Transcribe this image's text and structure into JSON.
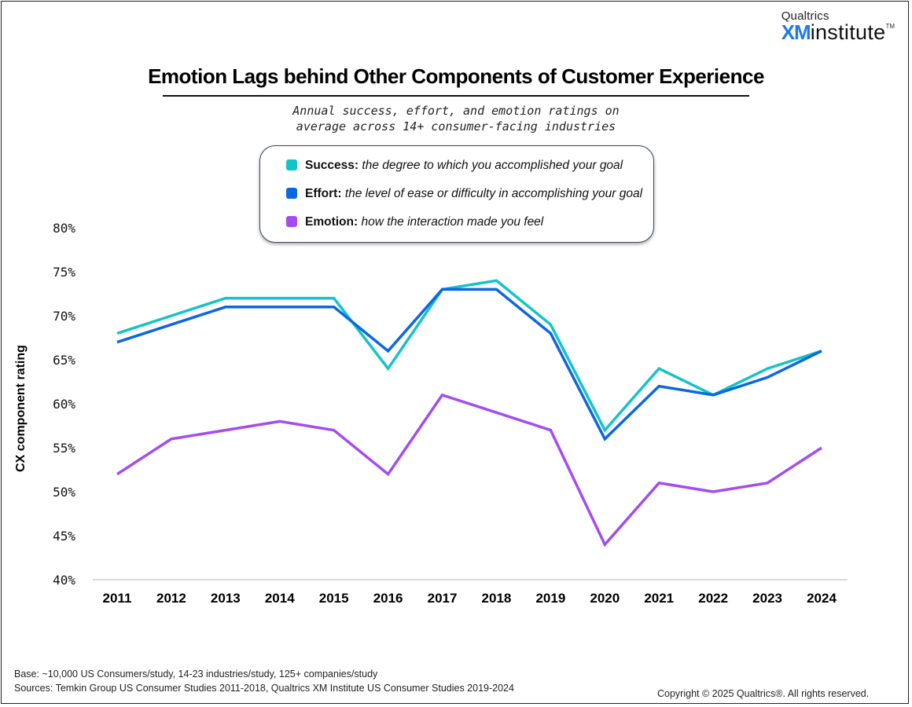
{
  "brand": {
    "line1": "Qualtrics",
    "xm": "XM",
    "word": "institute",
    "tm": "TM"
  },
  "title": "Emotion Lags behind Other Components of Customer Experience",
  "subtitle": [
    "Annual success, effort, and emotion ratings on",
    "average across 14+ consumer-facing industries"
  ],
  "legend": [
    {
      "name": "Success:",
      "desc": "the degree to which you accomplished your goal",
      "color": "#14c3c8"
    },
    {
      "name": "Effort:",
      "desc": "the level of ease or difficulty in accomplishing your goal",
      "color": "#0b67e0"
    },
    {
      "name": "Emotion:",
      "desc": "how the interaction made you feel",
      "color": "#a34cf0"
    }
  ],
  "footer": {
    "base": "Base: ~10,000 US Consumers/study, 14-23 industries/study, 125+ companies/study",
    "sources": "Sources: Temkin Group US Consumer Studies 2011-2018, Qualtrics XM Institute US Consumer Studies 2019-2024",
    "copyright": "Copyright © 2025 Qualtrics®. All rights reserved."
  },
  "chart_data": {
    "type": "line",
    "title": "Emotion Lags behind Other Components of Customer Experience",
    "xlabel": "",
    "ylabel": "CX component rating",
    "x": [
      "2011",
      "2012",
      "2013",
      "2014",
      "2015",
      "2016",
      "2017",
      "2018",
      "2019",
      "2020",
      "2021",
      "2022",
      "2023",
      "2024"
    ],
    "ylim": [
      40,
      80
    ],
    "yticks": [
      40,
      45,
      50,
      55,
      60,
      65,
      70,
      75,
      80
    ],
    "ytick_labels": [
      "40%",
      "45%",
      "50%",
      "55%",
      "60%",
      "65%",
      "70%",
      "75%",
      "80%"
    ],
    "grid": false,
    "legend_position": "top-center",
    "series": [
      {
        "name": "Success",
        "color": "#14c3c8",
        "values": [
          68,
          70,
          72,
          72,
          72,
          64,
          73,
          74,
          69,
          57,
          64,
          61,
          64,
          66
        ]
      },
      {
        "name": "Effort",
        "color": "#0b67e0",
        "values": [
          67,
          69,
          71,
          71,
          71,
          66,
          73,
          73,
          68,
          56,
          62,
          61,
          63,
          66
        ]
      },
      {
        "name": "Emotion",
        "color": "#a34cf0",
        "values": [
          52,
          56,
          57,
          58,
          57,
          52,
          61,
          59,
          57,
          44,
          51,
          50,
          51,
          55
        ]
      }
    ]
  }
}
